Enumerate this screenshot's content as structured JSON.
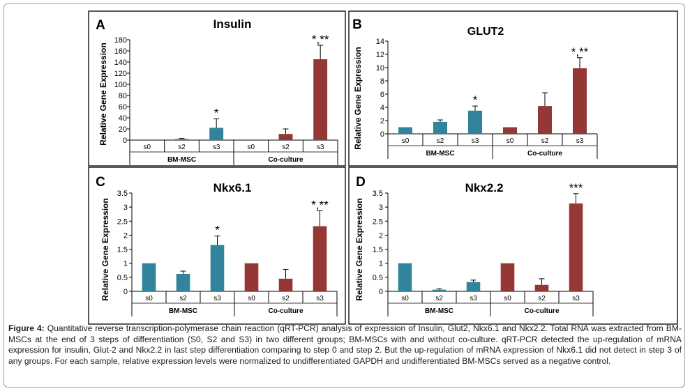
{
  "colors": {
    "bm": "#31849b",
    "co": "#953735",
    "axis": "#000000",
    "text": "#000000"
  },
  "caption": {
    "label": "Figure 4:",
    "text": "Quantitative reverse transcription-polymerase chain reaction (qRT-PCR) analysis of expression of Insulin, Glut2, Nkx6.1 and Nkx2.2. Total RNA was extracted from BM-MSCs at the end of 3 steps of differentiation (S0, S2 and S3) in two different groups; BM-MSCs with and without co-culture. qRT-PCR detected the up-regulation of mRNA expression for insulin, Glut-2 and Nkx2.2 in last step differentiation comparing to step 0 and step 2. But the up-regulation of mRNA expression of Nkx6.1 did not detect in step 3 of any groups. For each sample, relative expression levels were normalized to undifferentiated GAPDH and undifferentiated BM-MSCs served as a negative control."
  },
  "chart_data": [
    {
      "panel": "A",
      "type": "bar",
      "title": "Insulin",
      "ylabel": "Relative Gene Expression",
      "ylim": [
        0,
        180
      ],
      "yticks": [
        0,
        20,
        40,
        60,
        80,
        100,
        120,
        140,
        160,
        180
      ],
      "categories": [
        "s0",
        "s2",
        "s3",
        "s0",
        "s2",
        "s3"
      ],
      "groups": [
        "BM-MSC",
        "Co-culture"
      ],
      "values": [
        0,
        2,
        22,
        0,
        11,
        145
      ],
      "errors": [
        0,
        1,
        16,
        0,
        9,
        25
      ],
      "annotations": [
        "",
        "",
        "*",
        "",
        "",
        "*,**"
      ]
    },
    {
      "panel": "B",
      "type": "bar",
      "title": "GLUT2",
      "ylabel": "Relative Gene Expression",
      "ylim": [
        0,
        14
      ],
      "yticks": [
        0,
        2,
        4,
        6,
        8,
        10,
        12,
        14
      ],
      "categories": [
        "s0",
        "s2",
        "s3",
        "s0",
        "s2",
        "s3"
      ],
      "groups": [
        "BM-MSC",
        "Co-culture"
      ],
      "values": [
        1,
        1.8,
        3.5,
        1,
        4.2,
        9.9
      ],
      "errors": [
        0,
        0.3,
        0.7,
        0,
        2.0,
        1.6
      ],
      "annotations": [
        "",
        "",
        "*",
        "",
        "",
        "*,**"
      ]
    },
    {
      "panel": "C",
      "type": "bar",
      "title": "Nkx6.1",
      "ylabel": "Relative Gene Expression",
      "ylim": [
        0,
        3.5
      ],
      "yticks": [
        "0",
        "0.5",
        "1",
        "1.5",
        "2",
        "2.5",
        "3",
        "3.5"
      ],
      "categories": [
        "s0",
        "s2",
        "s3",
        "s0",
        "s2",
        "s3"
      ],
      "groups": [
        "BM-MSC",
        "Co-culture"
      ],
      "values": [
        1,
        0.62,
        1.65,
        1,
        0.45,
        2.32
      ],
      "errors": [
        0,
        0.1,
        0.32,
        0,
        0.33,
        0.55
      ],
      "annotations": [
        "",
        "",
        "*",
        "",
        "",
        "*,**"
      ]
    },
    {
      "panel": "D",
      "type": "bar",
      "title": "Nkx2.2",
      "ylabel": "Relative Gene Expression",
      "ylim": [
        0,
        3.5
      ],
      "yticks": [
        "0",
        "0.5",
        "1",
        "1.5",
        "2",
        "2.5",
        "3",
        "3.5"
      ],
      "categories": [
        "s0",
        "s2",
        "s3",
        "s0",
        "s2",
        "s3"
      ],
      "groups": [
        "BM-MSC",
        "Co-culture"
      ],
      "values": [
        1,
        0.06,
        0.33,
        1,
        0.23,
        3.13
      ],
      "errors": [
        0,
        0.03,
        0.07,
        0,
        0.22,
        0.35
      ],
      "annotations": [
        "",
        "",
        "",
        "",
        "",
        "***"
      ]
    }
  ]
}
